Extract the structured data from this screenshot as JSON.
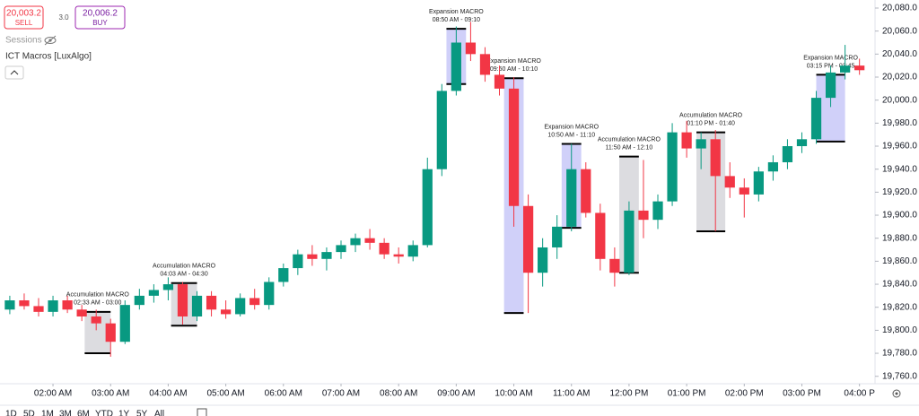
{
  "chart_data": {
    "type": "candlestick",
    "up_color": "#089981",
    "down_color": "#f23645",
    "xlim": [
      1.08,
      16.27
    ],
    "ylim": [
      19752,
      20087
    ],
    "xticks": [
      {
        "value": 2,
        "label": "02:00 AM"
      },
      {
        "value": 3,
        "label": "03:00 AM"
      },
      {
        "value": 4,
        "label": "04:00 AM"
      },
      {
        "value": 5,
        "label": "05:00 AM"
      },
      {
        "value": 6,
        "label": "06:00 AM"
      },
      {
        "value": 7,
        "label": "07:00 AM"
      },
      {
        "value": 8,
        "label": "08:00 AM"
      },
      {
        "value": 9,
        "label": "09:00 AM"
      },
      {
        "value": 10,
        "label": "10:00 AM"
      },
      {
        "value": 11,
        "label": "11:00 AM"
      },
      {
        "value": 12,
        "label": "12:00 PM"
      },
      {
        "value": 13,
        "label": "01:00 PM"
      },
      {
        "value": 14,
        "label": "02:00 PM"
      },
      {
        "value": 15,
        "label": "03:00 PM"
      },
      {
        "value": 16,
        "label": "04:00 P"
      }
    ],
    "yticks": [
      {
        "value": 20080,
        "label": "20,080.0"
      },
      {
        "value": 20060,
        "label": "20,060.0"
      },
      {
        "value": 20040,
        "label": "20,040.0"
      },
      {
        "value": 20020,
        "label": "20,020.0"
      },
      {
        "value": 20000,
        "label": "20,000.0"
      },
      {
        "value": 19980,
        "label": "19,980.0"
      },
      {
        "value": 19960,
        "label": "19,960.0"
      },
      {
        "value": 19940,
        "label": "19,940.0"
      },
      {
        "value": 19920,
        "label": "19,920.0"
      },
      {
        "value": 19900,
        "label": "19,900.0"
      },
      {
        "value": 19880,
        "label": "19,880.0"
      },
      {
        "value": 19860,
        "label": "19,860.0"
      },
      {
        "value": 19840,
        "label": "19,840.0"
      },
      {
        "value": 19820,
        "label": "19,820.0"
      },
      {
        "value": 19800,
        "label": "19,800.0"
      },
      {
        "value": 19780,
        "label": "19,780.0"
      },
      {
        "value": 19760,
        "label": "19,760.0"
      }
    ],
    "x": [
      1.25,
      1.5,
      1.75,
      2,
      2.25,
      2.5,
      2.75,
      3,
      3.25,
      3.5,
      3.75,
      4,
      4.25,
      4.5,
      4.75,
      5,
      5.25,
      5.5,
      5.75,
      6,
      6.25,
      6.5,
      6.75,
      7,
      7.25,
      7.5,
      7.75,
      8,
      8.25,
      8.5,
      8.75,
      9,
      9.25,
      9.5,
      9.75,
      10,
      10.25,
      10.5,
      10.75,
      11,
      11.25,
      11.5,
      11.75,
      12,
      12.25,
      12.5,
      12.75,
      13,
      13.25,
      13.5,
      13.75,
      14,
      14.25,
      14.5,
      14.75,
      15,
      15.25,
      15.5,
      15.75,
      16
    ],
    "open": [
      19818,
      19826,
      19821,
      19816,
      19826,
      19818,
      19812,
      19806,
      19790,
      19822,
      19830,
      19835,
      19840,
      19812,
      19830,
      19818,
      19814,
      19828,
      19822,
      19842,
      19854,
      19866,
      19862,
      19868,
      19874,
      19880,
      19876,
      19866,
      19864,
      19874,
      19940,
      20008,
      20050,
      20040,
      20022,
      20010,
      19908,
      19850,
      19872,
      19890,
      19940,
      19902,
      19862,
      19850,
      19904,
      19896,
      19912,
      19972,
      19958,
      19966,
      19934,
      19924,
      19918,
      19938,
      19946,
      19960,
      19966,
      20002,
      20024,
      20030
    ],
    "high": [
      19830,
      19832,
      19828,
      19830,
      19830,
      19822,
      19818,
      19810,
      19826,
      19836,
      19840,
      19846,
      19842,
      19834,
      19834,
      19826,
      19832,
      19836,
      19846,
      19858,
      19870,
      19874,
      19872,
      19878,
      19884,
      19888,
      19880,
      19872,
      19878,
      19950,
      20014,
      20064,
      20068,
      20046,
      20030,
      20020,
      19918,
      19880,
      19900,
      19962,
      19946,
      19910,
      19872,
      19912,
      19948,
      19918,
      19980,
      19982,
      19972,
      19974,
      19946,
      19932,
      19942,
      19952,
      19966,
      19972,
      20008,
      20030,
      20048,
      20036
    ],
    "low": [
      19814,
      19818,
      19812,
      19812,
      19815,
      19808,
      19800,
      19777,
      19788,
      19818,
      19824,
      19826,
      19805,
      19808,
      19812,
      19810,
      19812,
      19818,
      19818,
      19838,
      19848,
      19856,
      19852,
      19862,
      19868,
      19870,
      19862,
      19858,
      19860,
      19872,
      19934,
      20004,
      20034,
      20016,
      20004,
      19890,
      19815,
      19838,
      19862,
      19886,
      19898,
      19852,
      19838,
      19848,
      19880,
      19888,
      19908,
      19950,
      19940,
      19886,
      19915,
      19898,
      19912,
      19930,
      19940,
      19954,
      19962,
      19994,
      20018,
      20022
    ],
    "close": [
      19826,
      19821,
      19816,
      19826,
      19818,
      19812,
      19806,
      19790,
      19822,
      19830,
      19835,
      19840,
      19812,
      19830,
      19818,
      19814,
      19828,
      19822,
      19842,
      19854,
      19866,
      19862,
      19868,
      19874,
      19880,
      19876,
      19866,
      19864,
      19874,
      19940,
      20008,
      20050,
      20040,
      20022,
      20010,
      19908,
      19850,
      19872,
      19890,
      19940,
      19902,
      19862,
      19850,
      19904,
      19896,
      19912,
      19972,
      19958,
      19966,
      19934,
      19924,
      19918,
      19938,
      19946,
      19960,
      19966,
      20002,
      20024,
      20030,
      20026
    ],
    "macros": [
      {
        "label": "Accumulation MACRO",
        "time": "02:33 AM - 03:00",
        "x0": 2.55,
        "x1": 3.0,
        "top": 19816,
        "bottom": 19780,
        "color": "#d6d6da"
      },
      {
        "label": "Accumulation MACRO",
        "time": "04:03 AM - 04:30",
        "x0": 4.05,
        "x1": 4.5,
        "top": 19841,
        "bottom": 19804,
        "color": "#d6d6da"
      },
      {
        "label": "Expansion MACRO",
        "time": "08:50 AM - 09:10",
        "x0": 8.83,
        "x1": 9.17,
        "top": 20062,
        "bottom": 20014,
        "color": "#c8c8f8"
      },
      {
        "label": "Expansion MACRO",
        "time": "09:50 AM - 10:10",
        "x0": 9.83,
        "x1": 10.17,
        "top": 20019,
        "bottom": 19815,
        "color": "#c8c8f8"
      },
      {
        "label": "Expansion MACRO",
        "time": "10:50 AM - 11:10",
        "x0": 10.83,
        "x1": 11.17,
        "top": 19962,
        "bottom": 19889,
        "color": "#c8c8f8"
      },
      {
        "label": "Accumulation MACRO",
        "time": "11:50 AM - 12:10",
        "x0": 11.83,
        "x1": 12.17,
        "top": 19951,
        "bottom": 19850,
        "color": "#d6d6da"
      },
      {
        "label": "Accumulation MACRO",
        "time": "01:10 PM - 01:40",
        "x0": 13.17,
        "x1": 13.67,
        "top": 19972,
        "bottom": 19886,
        "color": "#d6d6da"
      },
      {
        "label": "Expansion MACRO",
        "time": "03:15 PM - 03:45",
        "x0": 15.25,
        "x1": 15.75,
        "top": 20022,
        "bottom": 19964,
        "color": "#c8c8f8"
      }
    ]
  },
  "ui": {
    "sell_price": "20,003.2",
    "sell": "SELL",
    "spread": "3.0",
    "buy_price": "20,006.2",
    "buy": "BUY",
    "sessions": "Sessions",
    "indicator": "ICT Macros [LuxAlgo]",
    "ranges": [
      "1D",
      "5D",
      "1M",
      "3M",
      "6M",
      "YTD",
      "1Y",
      "5Y",
      "All"
    ]
  }
}
